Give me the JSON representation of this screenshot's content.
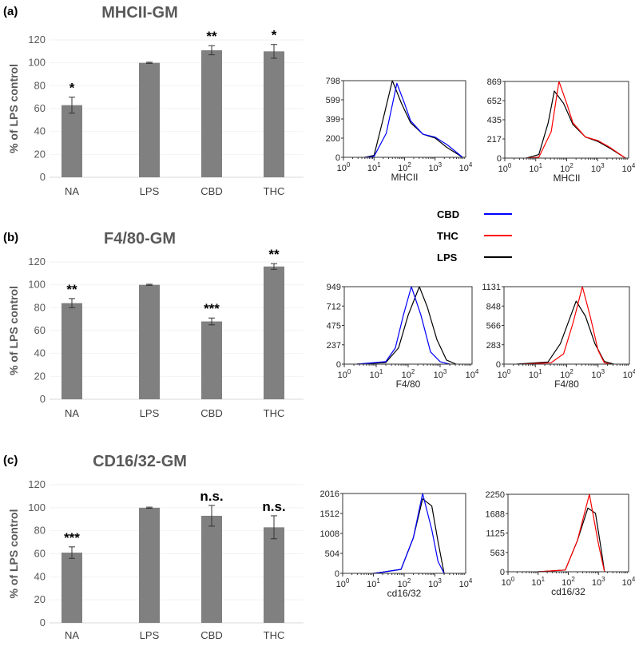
{
  "chart_data": {
    "bar_panels": [
      {
        "panel": "(a)",
        "title": "MHCII-GM",
        "type": "bar",
        "ylabel": "% of LPS control",
        "ylim": [
          0,
          120
        ],
        "yticks": [
          0,
          20,
          40,
          60,
          80,
          100,
          120
        ],
        "categories": [
          "NA",
          "LPS",
          "CBD",
          "THC"
        ],
        "values": [
          63,
          100,
          111,
          110
        ],
        "errors": [
          7,
          0.5,
          4,
          6
        ],
        "significance": [
          "*",
          "",
          "**",
          "*"
        ],
        "bar_color": "#808080"
      },
      {
        "panel": "(b)",
        "title": "F4/80-GM",
        "type": "bar",
        "ylabel": "% of LPS control",
        "ylim": [
          0,
          120
        ],
        "yticks": [
          0,
          20,
          40,
          60,
          80,
          100,
          120
        ],
        "categories": [
          "NA",
          "LPS",
          "CBD",
          "THC"
        ],
        "values": [
          84,
          100,
          68,
          116
        ],
        "errors": [
          4,
          0.5,
          3,
          2.5
        ],
        "significance": [
          "**",
          "",
          "***",
          "**"
        ],
        "bar_color": "#808080"
      },
      {
        "panel": "(c)",
        "title": "CD16/32-GM",
        "type": "bar",
        "ylabel": "% of LPS control",
        "ylim": [
          0,
          120
        ],
        "yticks": [
          0,
          20,
          40,
          60,
          80,
          100,
          120
        ],
        "categories": [
          "NA",
          "LPS",
          "CBD",
          "THC"
        ],
        "values": [
          61,
          100,
          93,
          83
        ],
        "errors": [
          5,
          0.5,
          9,
          10
        ],
        "significance": [
          "***",
          "",
          "n.s.",
          "n.s."
        ],
        "bar_color": "#808080"
      }
    ],
    "legend": [
      {
        "name": "CBD",
        "color": "#0000ff"
      },
      {
        "name": "THC",
        "color": "#ff0000"
      },
      {
        "name": "LPS",
        "color": "#000000"
      }
    ],
    "histograms": [
      {
        "type": "line",
        "xlabel": "MHCII",
        "xscale": "log10",
        "xlim_log10": [
          0,
          4
        ],
        "xticks": [
          "0",
          "1",
          "2",
          "3",
          "4"
        ],
        "yticks": [
          "0",
          "200",
          "399",
          "599",
          "798"
        ],
        "ymax": 798,
        "series": [
          {
            "name": "LPS",
            "color": "#000000",
            "points": [
              [
                0.7,
                0
              ],
              [
                1.0,
                20
              ],
              [
                1.3,
                400
              ],
              [
                1.6,
                798
              ],
              [
                1.9,
                560
              ],
              [
                2.2,
                360
              ],
              [
                2.6,
                240
              ],
              [
                3.0,
                200
              ],
              [
                3.4,
                100
              ],
              [
                3.9,
                0
              ]
            ]
          },
          {
            "name": "CBD",
            "color": "#0000ff",
            "points": [
              [
                0.7,
                0
              ],
              [
                1.0,
                10
              ],
              [
                1.4,
                250
              ],
              [
                1.75,
                770
              ],
              [
                2.0,
                560
              ],
              [
                2.2,
                380
              ],
              [
                2.6,
                240
              ],
              [
                3.0,
                210
              ],
              [
                3.4,
                130
              ],
              [
                3.9,
                0
              ]
            ]
          }
        ]
      },
      {
        "type": "line",
        "xlabel": "MHCII",
        "xscale": "log10",
        "xlim_log10": [
          0,
          4
        ],
        "xticks": [
          "0",
          "1",
          "2",
          "3",
          "4"
        ],
        "yticks": [
          "0",
          "217",
          "435",
          "652",
          "869"
        ],
        "ymax": 869,
        "series": [
          {
            "name": "LPS",
            "color": "#000000",
            "points": [
              [
                0.7,
                0
              ],
              [
                1.1,
                40
              ],
              [
                1.4,
                400
              ],
              [
                1.6,
                760
              ],
              [
                1.9,
                620
              ],
              [
                2.2,
                380
              ],
              [
                2.6,
                240
              ],
              [
                3.0,
                190
              ],
              [
                3.4,
                110
              ],
              [
                3.9,
                0
              ]
            ]
          },
          {
            "name": "THC",
            "color": "#ff0000",
            "points": [
              [
                0.7,
                0
              ],
              [
                1.1,
                10
              ],
              [
                1.5,
                300
              ],
              [
                1.75,
                869
              ],
              [
                2.0,
                620
              ],
              [
                2.2,
                400
              ],
              [
                2.6,
                240
              ],
              [
                3.0,
                200
              ],
              [
                3.4,
                120
              ],
              [
                3.9,
                0
              ]
            ]
          }
        ]
      },
      {
        "type": "line",
        "xlabel": "F4/80",
        "xscale": "log10",
        "xlim_log10": [
          0,
          4
        ],
        "xticks": [
          "0",
          "1",
          "2",
          "3",
          "4"
        ],
        "yticks": [
          "0",
          "237",
          "475",
          "712",
          "949"
        ],
        "ymax": 949,
        "series": [
          {
            "name": "LPS",
            "color": "#000000",
            "points": [
              [
                0.4,
                0
              ],
              [
                1.3,
                20
              ],
              [
                1.7,
                200
              ],
              [
                2.0,
                600
              ],
              [
                2.35,
                949
              ],
              [
                2.6,
                700
              ],
              [
                2.9,
                300
              ],
              [
                3.2,
                50
              ],
              [
                3.5,
                0
              ]
            ]
          },
          {
            "name": "CBD",
            "color": "#0000ff",
            "points": [
              [
                0.4,
                0
              ],
              [
                1.3,
                30
              ],
              [
                1.6,
                200
              ],
              [
                1.85,
                600
              ],
              [
                2.1,
                949
              ],
              [
                2.4,
                600
              ],
              [
                2.7,
                150
              ],
              [
                3.0,
                30
              ],
              [
                3.3,
                0
              ]
            ]
          }
        ]
      },
      {
        "type": "line",
        "xlabel": "F4/80",
        "xscale": "log10",
        "xlim_log10": [
          0,
          4
        ],
        "xticks": [
          "0",
          "1",
          "2",
          "3",
          "4"
        ],
        "yticks": [
          "0",
          "283",
          "566",
          "848",
          "1131"
        ],
        "ymax": 1131,
        "series": [
          {
            "name": "LPS",
            "color": "#000000",
            "points": [
              [
                0.4,
                0
              ],
              [
                1.4,
                30
              ],
              [
                1.8,
                300
              ],
              [
                2.3,
                920
              ],
              [
                2.6,
                700
              ],
              [
                2.9,
                300
              ],
              [
                3.2,
                40
              ],
              [
                3.5,
                0
              ]
            ]
          },
          {
            "name": "THC",
            "color": "#ff0000",
            "points": [
              [
                0.6,
                0
              ],
              [
                1.5,
                20
              ],
              [
                1.9,
                150
              ],
              [
                2.2,
                600
              ],
              [
                2.5,
                1131
              ],
              [
                2.75,
                700
              ],
              [
                3.0,
                200
              ],
              [
                3.2,
                20
              ],
              [
                3.4,
                0
              ]
            ]
          }
        ]
      },
      {
        "type": "line",
        "xlabel": "cd16/32",
        "xscale": "log10",
        "xlim_log10": [
          0,
          4
        ],
        "xticks": [
          "0",
          "1",
          "2",
          "3",
          "4"
        ],
        "yticks": [
          "0",
          "504",
          "1008",
          "1512",
          "2016"
        ],
        "ymax": 2016,
        "series": [
          {
            "name": "LPS",
            "color": "#000000",
            "points": [
              [
                1.0,
                0
              ],
              [
                1.3,
                30
              ],
              [
                1.9,
                100
              ],
              [
                2.3,
                900
              ],
              [
                2.6,
                1880
              ],
              [
                2.9,
                1700
              ],
              [
                3.1,
                800
              ],
              [
                3.3,
                0
              ]
            ]
          },
          {
            "name": "CBD",
            "color": "#0000ff",
            "points": [
              [
                1.0,
                0
              ],
              [
                1.3,
                30
              ],
              [
                1.9,
                100
              ],
              [
                2.3,
                900
              ],
              [
                2.6,
                2016
              ],
              [
                2.9,
                1100
              ],
              [
                3.1,
                300
              ],
              [
                3.3,
                0
              ]
            ]
          }
        ]
      },
      {
        "type": "line",
        "xlabel": "cd16/32",
        "xscale": "log10",
        "xlim_log10": [
          0,
          4
        ],
        "xticks": [
          "0",
          "1",
          "2",
          "3",
          "4"
        ],
        "yticks": [
          "0",
          "563",
          "1125",
          "1688",
          "2250"
        ],
        "ymax": 2250,
        "series": [
          {
            "name": "LPS",
            "color": "#000000",
            "points": [
              [
                1.0,
                0
              ],
              [
                1.9,
                50
              ],
              [
                2.3,
                900
              ],
              [
                2.65,
                1850
              ],
              [
                2.9,
                1700
              ],
              [
                3.1,
                600
              ],
              [
                3.2,
                0
              ]
            ]
          },
          {
            "name": "THC",
            "color": "#ff0000",
            "points": [
              [
                1.0,
                0
              ],
              [
                1.9,
                50
              ],
              [
                2.3,
                900
              ],
              [
                2.7,
                2250
              ],
              [
                3.0,
                800
              ],
              [
                3.2,
                0
              ]
            ]
          }
        ]
      }
    ]
  }
}
